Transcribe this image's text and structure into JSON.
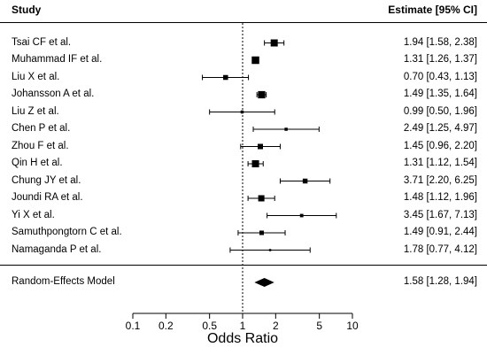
{
  "header": {
    "study": "Study",
    "estimate": "Estimate [95% CI]"
  },
  "chart_data": {
    "type": "forest",
    "xlabel": "Odds Ratio",
    "xscale": "log",
    "xlim": [
      0.1,
      10
    ],
    "reference_line": 1,
    "ticks": [
      0.1,
      0.2,
      0.5,
      1,
      2,
      5,
      10
    ],
    "tick_labels": [
      "0.1",
      "0.2",
      "0.5",
      "1",
      "2",
      "5",
      "10"
    ],
    "studies": [
      {
        "name": "Tsai CF et al.",
        "or": 1.94,
        "lo": 1.58,
        "hi": 2.38,
        "text": "1.94 [1.58, 2.38]",
        "weight": 8.0
      },
      {
        "name": "Muhammad IF et al.",
        "or": 1.31,
        "lo": 1.26,
        "hi": 1.37,
        "text": "1.31 [1.26, 1.37]",
        "weight": 8.5
      },
      {
        "name": "Liu X et al.",
        "or": 0.7,
        "lo": 0.43,
        "hi": 1.13,
        "text": "0.70 [0.43, 1.13]",
        "weight": 5.5
      },
      {
        "name": "Johansson A et al.",
        "or": 1.49,
        "lo": 1.35,
        "hi": 1.64,
        "text": "1.49 [1.35, 1.64]",
        "weight": 8.2
      },
      {
        "name": "Liu Z et al.",
        "or": 0.99,
        "lo": 0.5,
        "hi": 1.96,
        "text": "0.99 [0.50, 1.96]",
        "weight": 3.5
      },
      {
        "name": "Chen P et al.",
        "or": 2.49,
        "lo": 1.25,
        "hi": 4.97,
        "text": "2.49 [1.25, 4.97]",
        "weight": 3.5
      },
      {
        "name": "Zhou F et al.",
        "or": 1.45,
        "lo": 0.96,
        "hi": 2.2,
        "text": "1.45 [0.96, 2.20]",
        "weight": 6.0
      },
      {
        "name": "Qin H et al.",
        "or": 1.31,
        "lo": 1.12,
        "hi": 1.54,
        "text": "1.31 [1.12, 1.54]",
        "weight": 8.0
      },
      {
        "name": "Chung JY et al.",
        "or": 3.71,
        "lo": 2.2,
        "hi": 6.25,
        "text": "3.71 [2.20, 6.25]",
        "weight": 5.5
      },
      {
        "name": "Joundi RA et al.",
        "or": 1.48,
        "lo": 1.12,
        "hi": 1.96,
        "text": "1.48 [1.12, 1.96]",
        "weight": 7.0
      },
      {
        "name": "Yi X et al.",
        "or": 3.45,
        "lo": 1.67,
        "hi": 7.13,
        "text": "3.45 [1.67, 7.13]",
        "weight": 3.8
      },
      {
        "name": "Samuthpongtorn C et al.",
        "or": 1.49,
        "lo": 0.91,
        "hi": 2.44,
        "text": "1.49 [0.91, 2.44]",
        "weight": 5.0
      },
      {
        "name": "Namaganda P et al.",
        "or": 1.78,
        "lo": 0.77,
        "hi": 4.12,
        "text": "1.78 [0.77, 4.12]",
        "weight": 2.5
      }
    ],
    "summary": {
      "name": "Random-Effects Model",
      "or": 1.58,
      "lo": 1.28,
      "hi": 1.94,
      "text": "1.58 [1.28, 1.94]"
    }
  }
}
